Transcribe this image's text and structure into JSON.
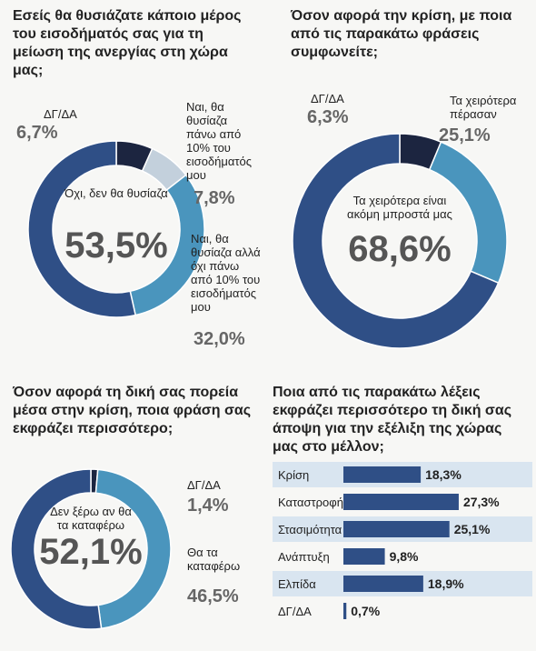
{
  "chart_data": [
    {
      "type": "donut",
      "title": "Εσείς θα θυσιάζατε κάποιο μέρος του εισοδήματός σας για τη μείωση της ανεργίας στη χώρα μας;",
      "categories": [
        "ΔΓ/ΔΑ",
        "Ναι, θα θυσίαζα πάνω από 10% του εισοδήματός μου",
        "Ναι, θα θυσίαζα αλλά όχι πάνω από 10% του εισοδήματός μου",
        "Όχι, δεν θα θυσίαζα"
      ],
      "values": [
        6.7,
        7.8,
        32.0,
        53.5
      ],
      "value_labels": [
        "6,7%",
        "7,8%",
        "32,0%",
        "53,5%"
      ],
      "colors": [
        "#1c2540",
        "#c3d0dc",
        "#4a95bd",
        "#2f4f86"
      ]
    },
    {
      "type": "donut",
      "title": "Όσον αφορά την κρίση, με ποια από τις παρακάτω φράσεις συμφωνείτε;",
      "categories": [
        "ΔΓ/ΔΑ",
        "Τα χειρότερα πέρασαν",
        "Τα χειρότερα είναι ακόμη μπροστά μας"
      ],
      "values": [
        6.3,
        25.1,
        68.6
      ],
      "value_labels": [
        "6,3%",
        "25,1%",
        "68,6%"
      ],
      "colors": [
        "#1c2540",
        "#4a95bd",
        "#2f4f86"
      ]
    },
    {
      "type": "donut",
      "title": "Όσον αφορά τη δική σας πορεία μέσα στην κρίση, ποια φράση σας εκφράζει περισσότερο;",
      "categories": [
        "ΔΓ/ΔΑ",
        "Θα τα καταφέρω",
        "Δεν ξέρω αν θα τα καταφέρω"
      ],
      "values": [
        1.4,
        46.5,
        52.1
      ],
      "value_labels": [
        "1,4%",
        "46,5%",
        "52,1%"
      ],
      "colors": [
        "#1c2540",
        "#4a95bd",
        "#2f4f86"
      ]
    },
    {
      "type": "bar",
      "orientation": "horizontal",
      "title": "Ποια από τις παρακάτω λέξεις εκφράζει περισσότερο τη δική σας άποψη για την εξέλιξη της χώρας μας στο μέλλον;",
      "categories": [
        "Κρίση",
        "Καταστροφή",
        "Στασιμότητα",
        "Ανάπτυξη",
        "Ελπίδα",
        "ΔΓ/ΔΑ"
      ],
      "values": [
        18.3,
        27.3,
        25.1,
        9.8,
        18.9,
        0.7
      ],
      "value_labels": [
        "18,3%",
        "27,3%",
        "25,1%",
        "9,8%",
        "18,9%",
        "0,7%"
      ],
      "color": "#2f4f86"
    }
  ]
}
